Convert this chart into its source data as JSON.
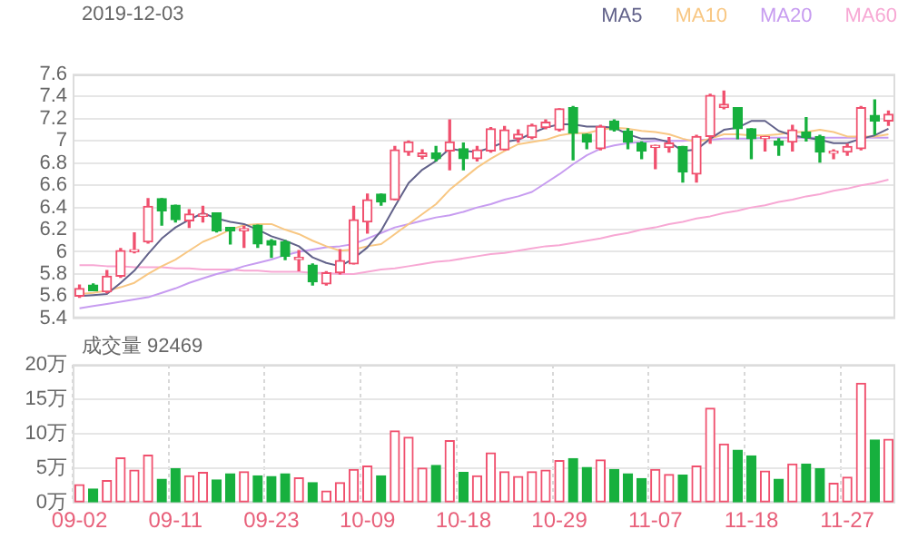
{
  "chart_data": [
    {
      "type": "candlestick",
      "title": "2019-12-03",
      "categories": [
        null,
        null,
        null,
        null,
        null,
        null,
        null,
        null,
        null,
        null,
        null,
        null,
        null,
        null,
        null,
        null,
        null,
        null,
        null,
        null,
        null,
        null,
        null,
        null,
        null,
        null,
        null,
        null,
        null,
        null,
        null,
        null,
        null,
        null,
        null,
        null,
        null,
        null,
        null,
        null,
        null,
        null,
        null,
        null,
        null,
        null,
        null,
        null,
        null,
        null,
        null,
        null,
        null,
        null,
        null,
        null,
        null,
        null,
        null,
        null
      ],
      "ohlc": [
        [
          5.6,
          5.7,
          5.59,
          5.67
        ],
        [
          5.7,
          5.71,
          5.65,
          5.65
        ],
        [
          5.64,
          5.83,
          5.63,
          5.78
        ],
        [
          5.78,
          6.03,
          5.77,
          6.01
        ],
        [
          6.0,
          6.17,
          5.99,
          6.02
        ],
        [
          6.09,
          6.48,
          6.08,
          6.41
        ],
        [
          6.48,
          6.48,
          6.24,
          6.37
        ],
        [
          6.42,
          6.42,
          6.27,
          6.29
        ],
        [
          6.28,
          6.38,
          6.22,
          6.34
        ],
        [
          6.32,
          6.41,
          6.27,
          6.34
        ],
        [
          6.35,
          6.35,
          6.18,
          6.19
        ],
        [
          6.22,
          6.22,
          6.07,
          6.19
        ],
        [
          6.19,
          6.23,
          6.04,
          6.21
        ],
        [
          6.24,
          6.24,
          6.04,
          6.07
        ],
        [
          6.1,
          6.11,
          5.95,
          6.06
        ],
        [
          6.09,
          6.1,
          5.93,
          5.96
        ],
        [
          5.93,
          6.01,
          5.83,
          5.95
        ],
        [
          5.88,
          5.89,
          5.7,
          5.73
        ],
        [
          5.71,
          5.82,
          5.7,
          5.81
        ],
        [
          5.81,
          6.02,
          5.8,
          5.92
        ],
        [
          5.89,
          6.41,
          5.89,
          6.29
        ],
        [
          6.27,
          6.52,
          6.17,
          6.47
        ],
        [
          6.52,
          6.52,
          6.42,
          6.45
        ],
        [
          6.47,
          6.95,
          6.47,
          6.92
        ],
        [
          6.9,
          7.0,
          6.87,
          6.99
        ],
        [
          6.86,
          6.92,
          6.84,
          6.89
        ],
        [
          6.89,
          6.95,
          6.82,
          6.84
        ],
        [
          6.91,
          7.19,
          6.74,
          6.99
        ],
        [
          6.93,
          6.98,
          6.74,
          6.84
        ],
        [
          6.84,
          6.95,
          6.82,
          6.92
        ],
        [
          6.91,
          7.12,
          6.9,
          7.11
        ],
        [
          6.92,
          7.13,
          6.92,
          7.1
        ],
        [
          7.02,
          7.1,
          6.99,
          7.06
        ],
        [
          7.03,
          7.15,
          7.02,
          7.14
        ],
        [
          7.12,
          7.19,
          7.11,
          7.17
        ],
        [
          7.1,
          7.29,
          7.09,
          7.29
        ],
        [
          7.3,
          7.31,
          6.83,
          7.07
        ],
        [
          7.06,
          7.06,
          6.93,
          6.99
        ],
        [
          6.93,
          7.14,
          6.92,
          7.13
        ],
        [
          7.18,
          7.19,
          7.09,
          7.1
        ],
        [
          7.09,
          7.11,
          6.93,
          6.99
        ],
        [
          6.98,
          6.99,
          6.84,
          6.91
        ],
        [
          6.94,
          6.96,
          6.75,
          6.96
        ],
        [
          6.94,
          7.03,
          6.9,
          6.98
        ],
        [
          6.95,
          6.95,
          6.63,
          6.72
        ],
        [
          6.7,
          7.05,
          6.63,
          7.04
        ],
        [
          7.04,
          7.42,
          6.98,
          7.41
        ],
        [
          7.3,
          7.45,
          7.29,
          7.33
        ],
        [
          7.3,
          7.3,
          7.02,
          7.11
        ],
        [
          7.11,
          7.11,
          6.84,
          7.02
        ],
        [
          7.02,
          7.04,
          6.91,
          7.04
        ],
        [
          7.0,
          7.02,
          6.87,
          6.96
        ],
        [
          6.99,
          7.14,
          6.91,
          7.1
        ],
        [
          7.08,
          7.21,
          7.0,
          7.03
        ],
        [
          7.04,
          7.05,
          6.81,
          6.9
        ],
        [
          6.89,
          6.92,
          6.84,
          6.9
        ],
        [
          6.9,
          6.97,
          6.87,
          6.95
        ],
        [
          6.93,
          7.31,
          6.92,
          7.3
        ],
        [
          7.23,
          7.37,
          7.06,
          7.18
        ],
        [
          7.18,
          7.27,
          7.14,
          7.24
        ]
      ],
      "colors": [
        "#f0506e",
        "#17b03e",
        "#f0506e",
        "#f0506e",
        "#f0506e",
        "#f0506e",
        "#17b03e",
        "#17b03e",
        "#f0506e",
        "#f0506e",
        "#17b03e",
        "#17b03e",
        "#f0506e",
        "#17b03e",
        "#17b03e",
        "#17b03e",
        "#f0506e",
        "#17b03e",
        "#f0506e",
        "#f0506e",
        "#f0506e",
        "#f0506e",
        "#17b03e",
        "#f0506e",
        "#f0506e",
        "#f0506e",
        "#17b03e",
        "#f0506e",
        "#17b03e",
        "#f0506e",
        "#f0506e",
        "#f0506e",
        "#f0506e",
        "#f0506e",
        "#f0506e",
        "#f0506e",
        "#17b03e",
        "#17b03e",
        "#f0506e",
        "#17b03e",
        "#17b03e",
        "#17b03e",
        "#f0506e",
        "#f0506e",
        "#17b03e",
        "#f0506e",
        "#f0506e",
        "#f0506e",
        "#17b03e",
        "#17b03e",
        "#f0506e",
        "#17b03e",
        "#f0506e",
        "#17b03e",
        "#17b03e",
        "#f0506e",
        "#f0506e",
        "#f0506e",
        "#17b03e",
        "#f0506e"
      ],
      "series": [
        {
          "name": "MA5",
          "type": "line",
          "color": "#62628a",
          "values": [
            5.6,
            5.61,
            5.62,
            5.72,
            5.83,
            5.98,
            6.12,
            6.22,
            6.29,
            6.35,
            6.3,
            6.27,
            6.25,
            6.2,
            6.14,
            6.1,
            6.05,
            5.95,
            5.9,
            5.87,
            5.94,
            6.04,
            6.19,
            6.41,
            6.62,
            6.74,
            6.82,
            6.93,
            6.91,
            6.9,
            6.94,
            6.99,
            7.01,
            7.07,
            7.12,
            7.15,
            7.15,
            7.13,
            7.13,
            7.12,
            7.06,
            7.02,
            7.02,
            6.99,
            6.91,
            6.92,
            7.02,
            7.1,
            7.12,
            7.18,
            7.18,
            7.09,
            7.05,
            7.03,
            7.01,
            6.98,
            6.98,
            7.02,
            7.05,
            7.11
          ]
        },
        {
          "name": "MA10",
          "type": "line",
          "color": "#f8c783",
          "values": [
            5.62,
            5.63,
            5.65,
            5.68,
            5.72,
            5.8,
            5.87,
            5.93,
            6.01,
            6.09,
            6.14,
            6.2,
            6.24,
            6.25,
            6.25,
            6.2,
            6.16,
            6.1,
            6.05,
            6.01,
            6.02,
            6.05,
            6.07,
            6.16,
            6.25,
            6.34,
            6.43,
            6.56,
            6.66,
            6.76,
            6.84,
            6.91,
            6.97,
            6.99,
            7.01,
            7.05,
            7.07,
            7.07,
            7.1,
            7.12,
            7.11,
            7.09,
            7.08,
            7.06,
            7.02,
            6.99,
            7.02,
            7.06,
            7.06,
            7.05,
            7.05,
            7.06,
            7.08,
            7.08,
            7.1,
            7.08,
            7.04,
            7.04,
            7.04,
            7.06
          ]
        },
        {
          "name": "MA20",
          "type": "line",
          "color": "#c79cf0",
          "values": [
            5.49,
            5.51,
            5.53,
            5.55,
            5.57,
            5.59,
            5.63,
            5.67,
            5.72,
            5.76,
            5.8,
            5.83,
            5.87,
            5.9,
            5.93,
            5.97,
            6.0,
            6.02,
            6.04,
            6.05,
            6.07,
            6.12,
            6.17,
            6.22,
            6.25,
            6.28,
            6.31,
            6.33,
            6.36,
            6.4,
            6.43,
            6.47,
            6.5,
            6.54,
            6.62,
            6.7,
            6.79,
            6.87,
            6.93,
            6.96,
            6.98,
            6.99,
            7.0,
            7.0,
            7.0,
            7.01,
            7.01,
            7.02,
            7.02,
            7.02,
            7.03,
            7.03,
            7.03,
            7.03,
            7.03,
            7.03,
            7.03,
            7.03,
            7.03,
            7.03
          ]
        },
        {
          "name": "MA60",
          "type": "line",
          "color": "#f7a8d4",
          "values": [
            5.88,
            5.88,
            5.87,
            5.87,
            5.86,
            5.86,
            5.86,
            5.85,
            5.85,
            5.84,
            5.84,
            5.84,
            5.83,
            5.83,
            5.82,
            5.82,
            5.82,
            5.81,
            5.81,
            5.8,
            5.8,
            5.82,
            5.84,
            5.85,
            5.87,
            5.89,
            5.91,
            5.92,
            5.94,
            5.96,
            5.98,
            5.99,
            6.01,
            6.03,
            6.05,
            6.06,
            6.08,
            6.1,
            6.12,
            6.15,
            6.17,
            6.2,
            6.22,
            6.25,
            6.27,
            6.3,
            6.32,
            6.35,
            6.37,
            6.4,
            6.42,
            6.45,
            6.47,
            6.5,
            6.52,
            6.55,
            6.57,
            6.6,
            6.62,
            6.65
          ]
        }
      ],
      "ylim": [
        5.4,
        7.6
      ],
      "yticks": [
        5.4,
        5.6,
        5.8,
        6,
        6.2,
        6.4,
        6.6,
        6.8,
        7,
        7.2,
        7.4,
        7.6
      ],
      "grid": true,
      "legend": "top right",
      "tick_labels": "y",
      "marker": "none"
    },
    {
      "type": "bar",
      "title": "成交量 92469",
      "categories": [
        "09-02",
        null,
        null,
        null,
        null,
        null,
        null,
        "09-11",
        null,
        null,
        null,
        null,
        null,
        null,
        "09-23",
        null,
        null,
        null,
        null,
        null,
        null,
        "10-09",
        null,
        null,
        null,
        null,
        null,
        null,
        "10-18",
        null,
        null,
        null,
        null,
        null,
        null,
        "10-29",
        null,
        null,
        null,
        null,
        null,
        null,
        "11-07",
        null,
        null,
        null,
        null,
        null,
        null,
        "11-18",
        null,
        null,
        null,
        null,
        null,
        null,
        "11-27",
        null,
        null,
        null
      ],
      "values": [
        2.6,
        2.0,
        3.2,
        6.5,
        4.7,
        6.9,
        3.4,
        4.9,
        3.9,
        4.4,
        3.3,
        4.2,
        4.5,
        3.9,
        3.8,
        4.2,
        3.6,
        2.9,
        1.7,
        2.9,
        4.8,
        5.3,
        3.9,
        10.4,
        9.5,
        5.0,
        5.4,
        9.0,
        4.4,
        3.9,
        7.2,
        4.5,
        3.8,
        4.5,
        4.7,
        6.1,
        6.4,
        5.1,
        6.2,
        4.8,
        4.2,
        3.5,
        4.8,
        4.1,
        4.0,
        5.3,
        13.7,
        8.5,
        7.6,
        6.8,
        4.6,
        3.4,
        5.6,
        5.6,
        4.9,
        2.8,
        3.7,
        17.3,
        9.1,
        9.2
      ],
      "colors": [
        "#f0506e",
        "#17b03e",
        "#f0506e",
        "#f0506e",
        "#f0506e",
        "#f0506e",
        "#17b03e",
        "#17b03e",
        "#f0506e",
        "#f0506e",
        "#17b03e",
        "#17b03e",
        "#f0506e",
        "#17b03e",
        "#17b03e",
        "#17b03e",
        "#f0506e",
        "#17b03e",
        "#f0506e",
        "#f0506e",
        "#f0506e",
        "#f0506e",
        "#17b03e",
        "#f0506e",
        "#f0506e",
        "#f0506e",
        "#17b03e",
        "#f0506e",
        "#17b03e",
        "#f0506e",
        "#f0506e",
        "#f0506e",
        "#f0506e",
        "#f0506e",
        "#f0506e",
        "#f0506e",
        "#17b03e",
        "#17b03e",
        "#f0506e",
        "#17b03e",
        "#17b03e",
        "#17b03e",
        "#f0506e",
        "#f0506e",
        "#17b03e",
        "#f0506e",
        "#f0506e",
        "#f0506e",
        "#17b03e",
        "#17b03e",
        "#f0506e",
        "#17b03e",
        "#f0506e",
        "#17b03e",
        "#17b03e",
        "#f0506e",
        "#f0506e",
        "#f0506e",
        "#17b03e",
        "#f0506e"
      ],
      "ylim": [
        0,
        20
      ],
      "yticks": [
        {
          "value": 0,
          "label": "0万"
        },
        {
          "value": 5,
          "label": "5万"
        },
        {
          "value": 10,
          "label": "10万"
        },
        {
          "value": 15,
          "label": "15万"
        },
        {
          "value": 20,
          "label": "20万"
        }
      ],
      "grid": true
    }
  ]
}
